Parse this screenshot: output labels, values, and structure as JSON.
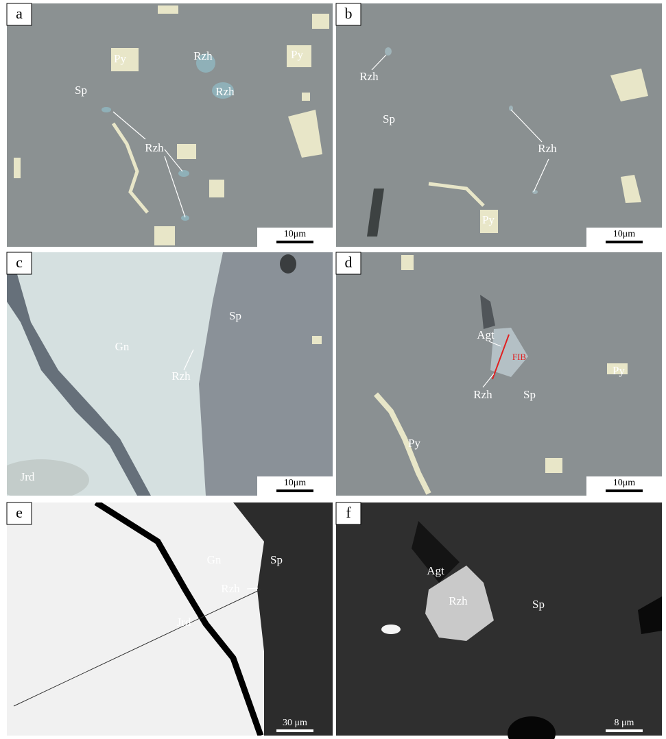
{
  "panels": [
    {
      "letter": "a",
      "labels": [
        "Py",
        "Rzh",
        "Py",
        "Sp",
        "Rzh",
        "Rzh"
      ],
      "scale": "10μm"
    },
    {
      "letter": "b",
      "labels": [
        "Rzh",
        "Sp",
        "Rzh",
        "Py"
      ],
      "scale": "10μm"
    },
    {
      "letter": "c",
      "labels": [
        "Sp",
        "Gn",
        "Rzh",
        "Jrd"
      ],
      "scale": "10μm"
    },
    {
      "letter": "d",
      "labels": [
        "Agt",
        "FIB",
        "Py",
        "Rzh",
        "Sp",
        "Py"
      ],
      "scale": "10μm"
    },
    {
      "letter": "e",
      "labels": [
        "Gn",
        "Sp",
        "Rzh",
        "Jrd"
      ],
      "scale": "30 μm"
    },
    {
      "letter": "f",
      "labels": [
        "Agt",
        "Rzh",
        "Sp"
      ],
      "scale": "8 μm"
    }
  ]
}
